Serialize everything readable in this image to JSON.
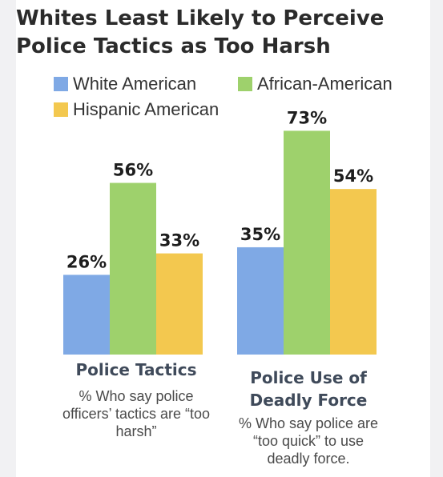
{
  "chart_data": {
    "type": "bar",
    "title": "Whites Least Likely to Perceive Police Tactics as Too Harsh",
    "categories": [
      "Police Tactics",
      "Police Use of Deadly Force"
    ],
    "category_descriptions": [
      "% Who say police officers’ tactics are “too harsh”",
      "% Who say police are “too quick” to use deadly force."
    ],
    "series": [
      {
        "name": "White American",
        "values": [
          26,
          35
        ],
        "color": "#7fa9e5"
      },
      {
        "name": "African-American",
        "values": [
          56,
          73
        ],
        "color": "#9ed16c"
      },
      {
        "name": "Hispanic American",
        "values": [
          33,
          54
        ],
        "color": "#f3c84f"
      }
    ],
    "value_suffix": "%",
    "ylim": [
      0,
      80
    ],
    "legend_position": "top",
    "grid": false
  }
}
